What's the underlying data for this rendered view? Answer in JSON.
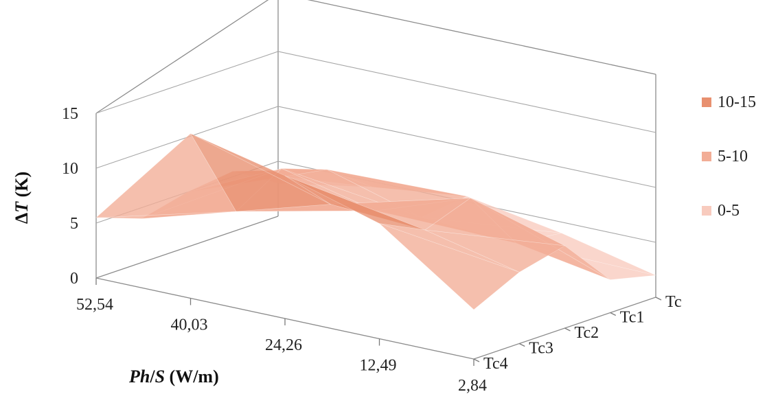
{
  "chart_data": {
    "type": "surface",
    "title": "",
    "xlabel_italic": "Ph",
    "xlabel_slash": "/",
    "xlabel_italic2": "S",
    "xlabel_unit": " (W/m)",
    "ylabel_delta": "Δ",
    "ylabel_italic": "T",
    "ylabel_unit": " (K)",
    "x_categories": [
      "52,54",
      "40,03",
      "24,26",
      "12,49",
      "2,84"
    ],
    "depth_categories": [
      "Tc",
      "Tc1",
      "Tc2",
      "Tc3",
      "Tc4"
    ],
    "z_ticks": [
      "0",
      "5",
      "10",
      "15"
    ],
    "zlim": [
      0,
      15
    ],
    "legend": [
      {
        "label": "10-15",
        "color": "#e8906f"
      },
      {
        "label": "5-10",
        "color": "#f2ad96"
      },
      {
        "label": "0-5",
        "color": "#f8cbbe"
      }
    ],
    "legend_position": "right",
    "surface_values": [
      [
        5.5,
        15.0,
        13.0,
        10.5,
        4.5
      ],
      [
        4.0,
        6.5,
        9.0,
        8.5,
        6.5
      ],
      [
        5.0,
        9.0,
        7.0,
        10.0,
        7.5
      ],
      [
        5.5,
        7.5,
        5.0,
        4.5,
        3.0
      ],
      [
        3.0,
        4.5,
        5.5,
        4.0,
        2.0
      ]
    ],
    "colors": {
      "band_low": "#f8cbbe",
      "band_mid": "#f2ad96",
      "band_high": "#e8906f",
      "edge": "#ffffff"
    }
  }
}
